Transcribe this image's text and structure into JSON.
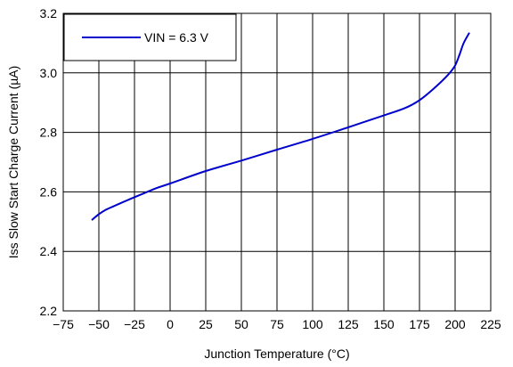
{
  "chart_data": {
    "type": "line",
    "xlabel": "Junction Temperature (°C)",
    "ylabel": "Iss Slow Start Charge Current (µA)",
    "xlim": [
      -75,
      225
    ],
    "ylim": [
      2.2,
      3.2
    ],
    "xticks": [
      "−75",
      "−50",
      "−25",
      "0",
      "25",
      "50",
      "75",
      "100",
      "125",
      "150",
      "175",
      "200",
      "225"
    ],
    "xtick_values": [
      -75,
      -50,
      -25,
      0,
      25,
      50,
      75,
      100,
      125,
      150,
      175,
      200,
      225
    ],
    "yticks": [
      "2.2",
      "2.4",
      "2.6",
      "2.8",
      "3.0",
      "3.2"
    ],
    "ytick_values": [
      2.2,
      2.4,
      2.6,
      2.8,
      3.0,
      3.2
    ],
    "grid": true,
    "legend_position": "top-left",
    "series": [
      {
        "name": "VIN = 6.3 V",
        "color": "#0000cc",
        "x": [
          -55,
          -50,
          -45,
          -40,
          -30,
          -20,
          -10,
          0,
          25,
          50,
          75,
          100,
          125,
          150,
          165,
          175,
          185,
          195,
          200,
          203,
          206,
          210
        ],
        "y": [
          2.505,
          2.525,
          2.54,
          2.551,
          2.572,
          2.592,
          2.612,
          2.628,
          2.67,
          2.705,
          2.742,
          2.778,
          2.817,
          2.857,
          2.882,
          2.908,
          2.947,
          2.993,
          3.025,
          3.06,
          3.1,
          3.135
        ]
      }
    ]
  }
}
